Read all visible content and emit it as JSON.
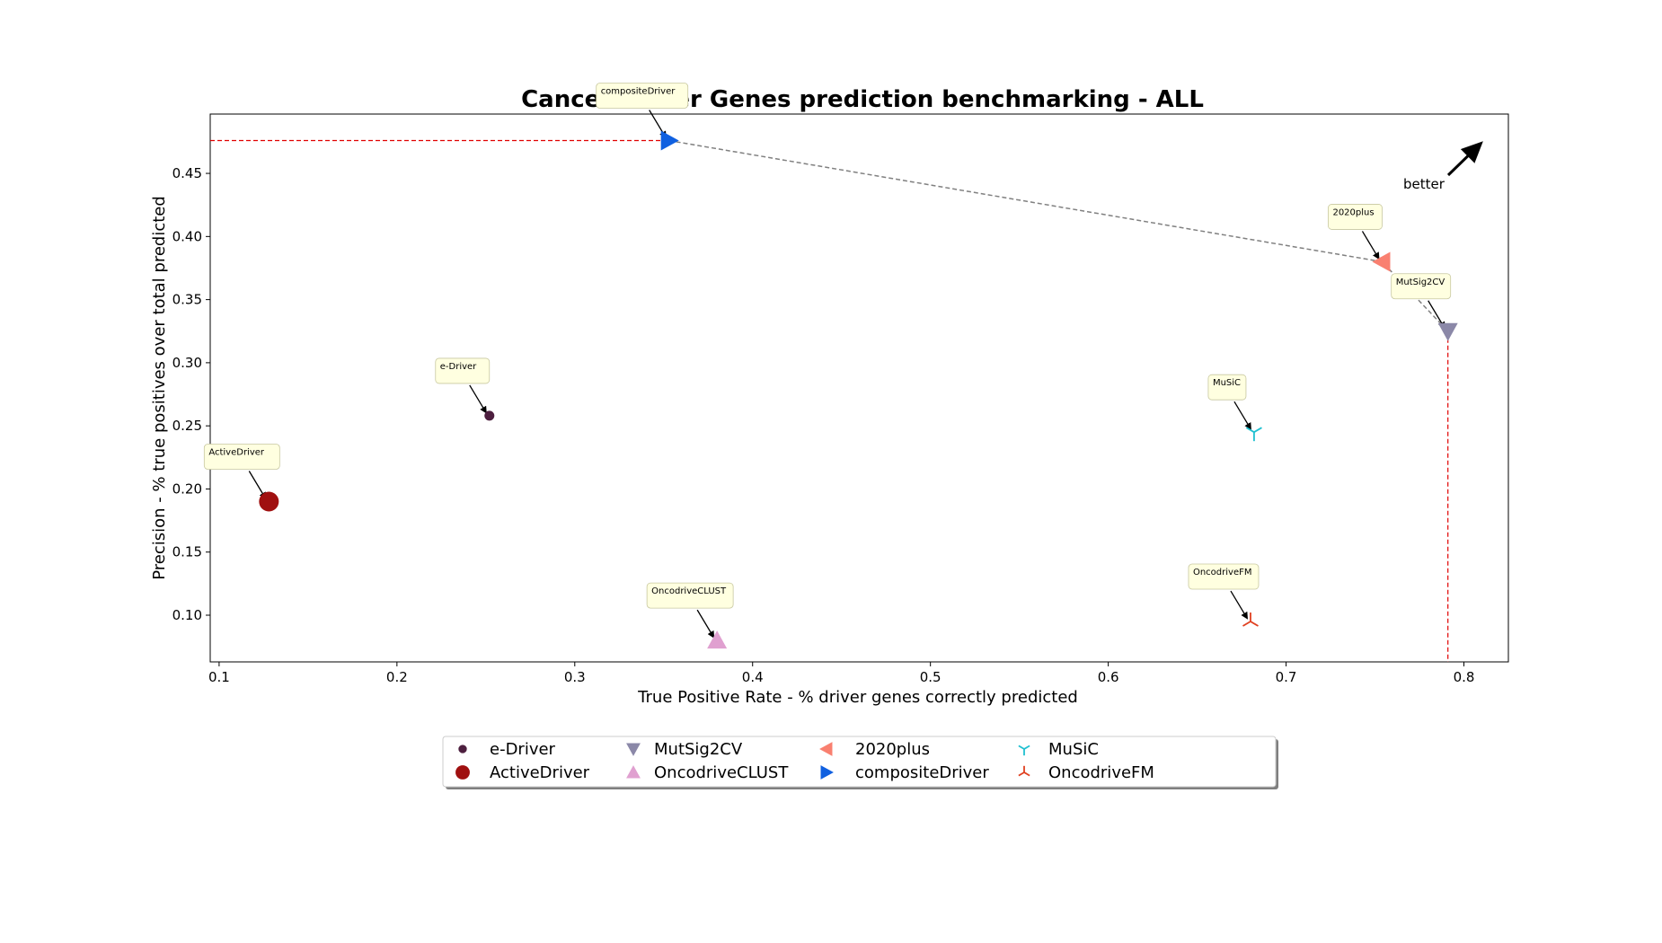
{
  "chart_data": {
    "type": "scatter",
    "title": "Cancer Driver Genes prediction benchmarking - ALL",
    "xlabel": "True Positive Rate - % driver genes correctly predicted",
    "ylabel": "Precision - % true positives over total predicted",
    "xlim": [
      0.095,
      0.825
    ],
    "ylim": [
      0.063,
      0.497
    ],
    "xticks": [
      "0.1",
      "0.2",
      "0.3",
      "0.4",
      "0.5",
      "0.6",
      "0.7",
      "0.8"
    ],
    "yticks": [
      "0.10",
      "0.15",
      "0.20",
      "0.25",
      "0.30",
      "0.35",
      "0.40",
      "0.45"
    ],
    "better_label": "better",
    "points": [
      {
        "name": "e-Driver",
        "x": 0.252,
        "y": 0.258,
        "marker": "circle-small",
        "color": "#4d1f3f"
      },
      {
        "name": "ActiveDriver",
        "x": 0.128,
        "y": 0.19,
        "marker": "circle-large",
        "color": "#a01010"
      },
      {
        "name": "MutSig2CV",
        "x": 0.791,
        "y": 0.325,
        "marker": "triangle-down",
        "color": "#8b88a8"
      },
      {
        "name": "OncodriveCLUST",
        "x": 0.38,
        "y": 0.08,
        "marker": "triangle-up",
        "color": "#e0a0d0"
      },
      {
        "name": "2020plus",
        "x": 0.754,
        "y": 0.38,
        "marker": "triangle-left",
        "color": "#f98070"
      },
      {
        "name": "compositeDriver",
        "x": 0.353,
        "y": 0.476,
        "marker": "triangle-right",
        "color": "#1060e0"
      },
      {
        "name": "MuSiC",
        "x": 0.682,
        "y": 0.245,
        "marker": "tri-down",
        "color": "#20c0d0"
      },
      {
        "name": "OncodriveFM",
        "x": 0.68,
        "y": 0.095,
        "marker": "tri-up",
        "color": "#e04020"
      }
    ],
    "pareto_front": [
      "compositeDriver",
      "2020plus",
      "MutSig2CV"
    ],
    "legend": {
      "placement": "below",
      "entries": [
        "e-Driver",
        "ActiveDriver",
        "MutSig2CV",
        "OncodriveCLUST",
        "2020plus",
        "compositeDriver",
        "MuSiC",
        "OncodriveFM"
      ]
    }
  }
}
